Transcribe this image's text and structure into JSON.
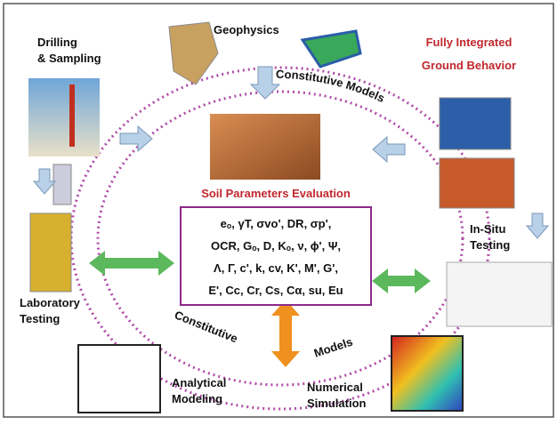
{
  "title": {
    "line1": "Fully Integrated",
    "line2": "Ground Behavior"
  },
  "nodes": [
    {
      "label": [
        "Geophysics"
      ]
    },
    {
      "label": [
        "Drilling",
        "& Sampling"
      ]
    },
    {
      "label": [
        "In-Situ",
        "Testing"
      ]
    },
    {
      "label": [
        "Laboratory",
        "Testing"
      ]
    },
    {
      "label": [
        "Analytical",
        "Modeling"
      ]
    },
    {
      "label": [
        "Numerical",
        "Simulation"
      ]
    }
  ],
  "ring_labels": {
    "top": "Constitutive Models",
    "bottom_left": "Constitutive",
    "bottom_right": "Models"
  },
  "center": {
    "heading": "Soil Parameters Evaluation",
    "parameters": [
      "eₒ, γT, σvo', DR, σp',",
      "OCR, Gₒ, D, Kₒ, ν, ϕ', Ψ,",
      "Λ, Γ, c', k, cv, K', M', G',",
      "E', Cc, Cr, Cs, Cα, su, Eu"
    ]
  }
}
